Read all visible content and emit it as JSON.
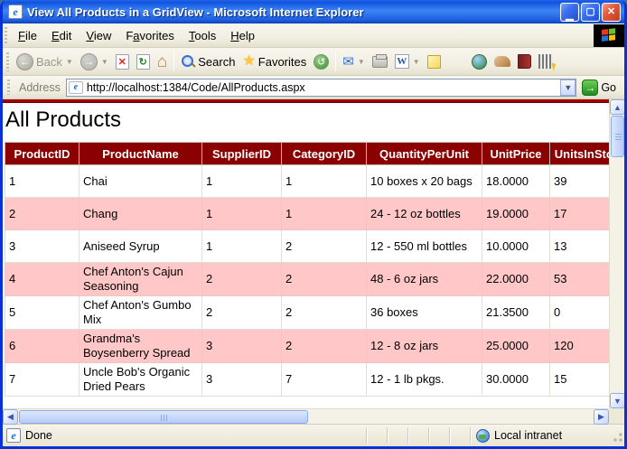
{
  "window": {
    "title": "View All Products in a GridView - Microsoft Internet Explorer"
  },
  "menu": {
    "items": [
      {
        "label": "File",
        "u": 0
      },
      {
        "label": "Edit",
        "u": 0
      },
      {
        "label": "View",
        "u": 0
      },
      {
        "label": "Favorites",
        "u": 1
      },
      {
        "label": "Tools",
        "u": 0
      },
      {
        "label": "Help",
        "u": 0
      }
    ]
  },
  "toolbar": {
    "back_label": "Back",
    "search_label": "Search",
    "favorites_label": "Favorites"
  },
  "address_bar": {
    "label": "Address",
    "url": "http://localhost:1384/Code/AllProducts.aspx",
    "go_label": "Go"
  },
  "page": {
    "heading": "All Products",
    "table": {
      "columns": [
        "ProductID",
        "ProductName",
        "SupplierID",
        "CategoryID",
        "QuantityPerUnit",
        "UnitPrice",
        "UnitsInStock"
      ],
      "rows": [
        [
          "1",
          "Chai",
          "1",
          "1",
          "10 boxes x 20 bags",
          "18.0000",
          "39"
        ],
        [
          "2",
          "Chang",
          "1",
          "1",
          "24 - 12 oz bottles",
          "19.0000",
          "17"
        ],
        [
          "3",
          "Aniseed Syrup",
          "1",
          "2",
          "12 - 550 ml bottles",
          "10.0000",
          "13"
        ],
        [
          "4",
          "Chef Anton's Cajun Seasoning",
          "2",
          "2",
          "48 - 6 oz jars",
          "22.0000",
          "53"
        ],
        [
          "5",
          "Chef Anton's Gumbo Mix",
          "2",
          "2",
          "36 boxes",
          "21.3500",
          "0"
        ],
        [
          "6",
          "Grandma's Boysenberry Spread",
          "3",
          "2",
          "12 - 8 oz jars",
          "25.0000",
          "120"
        ],
        [
          "7",
          "Uncle Bob's Organic Dried Pears",
          "3",
          "7",
          "12 - 1 lb pkgs.",
          "30.0000",
          "15"
        ]
      ]
    }
  },
  "status_bar": {
    "left": "Done",
    "right": "Local intranet"
  },
  "colors": {
    "header_bg": "#8b0000",
    "alt_row_bg": "#ffc7c7",
    "rule": "#a00000",
    "titlebar_blue": "#1e5ee0"
  }
}
